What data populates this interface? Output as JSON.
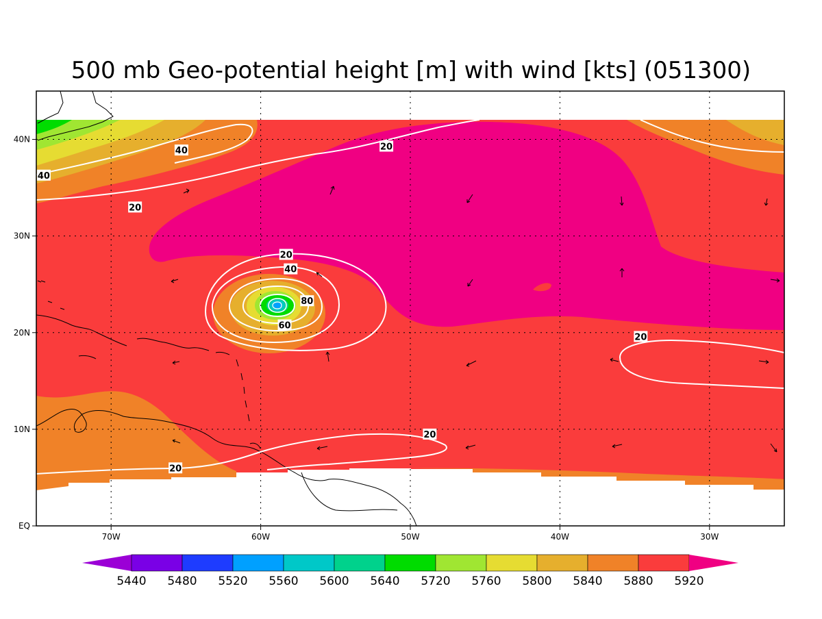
{
  "title": "500 mb Geo-potential height [m] with wind [kts] (051300)",
  "map": {
    "lon_min": -75,
    "lon_max": -25,
    "lat_min": 0,
    "lat_max": 45,
    "data_lat_max": 42,
    "x_ticks": [
      {
        "lon": -70,
        "label": "70W"
      },
      {
        "lon": -60,
        "label": "60W"
      },
      {
        "lon": -50,
        "label": "50W"
      },
      {
        "lon": -40,
        "label": "40W"
      },
      {
        "lon": -30,
        "label": "30W"
      }
    ],
    "y_ticks": [
      {
        "lat": 0,
        "label": "EQ"
      },
      {
        "lat": 10,
        "label": "10N"
      },
      {
        "lat": 20,
        "label": "20N"
      },
      {
        "lat": 30,
        "label": "30N"
      },
      {
        "lat": 40,
        "label": "40N"
      }
    ],
    "grid": "dotted"
  },
  "colorbar": {
    "colors": [
      "#9b00d6",
      "#7a00e6",
      "#1e3cff",
      "#00a0ff",
      "#00c8c8",
      "#00d28c",
      "#00dc00",
      "#a0e632",
      "#e6dc32",
      "#e6af2d",
      "#f08228",
      "#fa3c3c",
      "#f00082"
    ],
    "labels": [
      "5440",
      "5480",
      "5520",
      "5560",
      "5600",
      "5640",
      "5720",
      "5760",
      "5800",
      "5840",
      "5880",
      "5920"
    ]
  },
  "contour_labels": [
    {
      "text": "40",
      "lon": -74.5,
      "lat": 36.3
    },
    {
      "text": "40",
      "lon": -65.3,
      "lat": 38.9
    },
    {
      "text": "20",
      "lon": -51.6,
      "lat": 39.3
    },
    {
      "text": "20",
      "lon": -68.4,
      "lat": 33.0
    },
    {
      "text": "20",
      "lon": -58.3,
      "lat": 28.1
    },
    {
      "text": "40",
      "lon": -58.0,
      "lat": 26.6
    },
    {
      "text": "80",
      "lon": -56.9,
      "lat": 23.3
    },
    {
      "text": "60",
      "lon": -58.4,
      "lat": 20.8
    },
    {
      "text": "20",
      "lon": -34.6,
      "lat": 19.6
    },
    {
      "text": "20",
      "lon": -48.7,
      "lat": 9.5
    },
    {
      "text": "20",
      "lon": -65.7,
      "lat": 6.0
    }
  ]
}
